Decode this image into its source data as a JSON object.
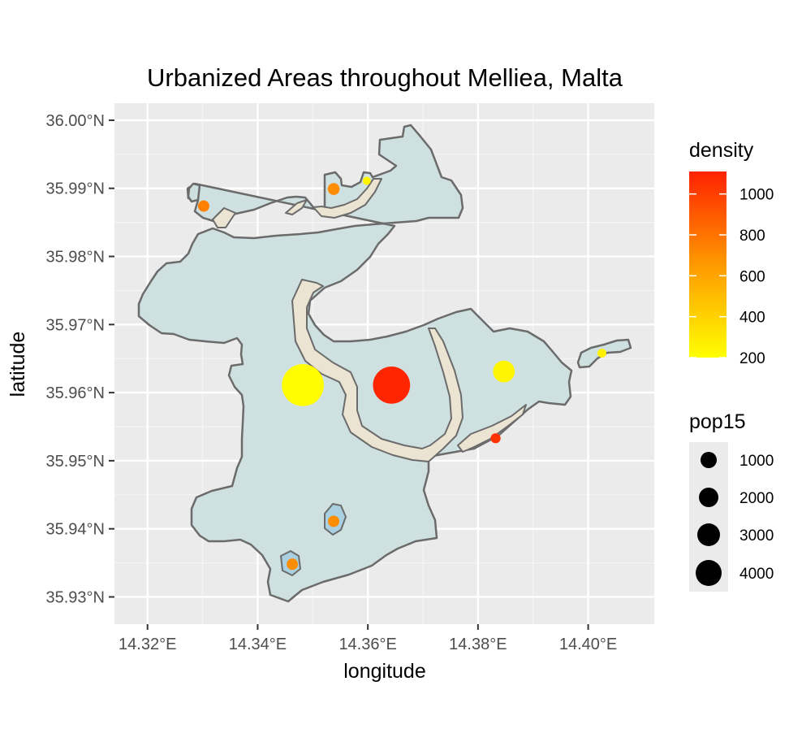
{
  "chart_data": {
    "type": "scatter",
    "subtype": "geographic-map",
    "title": "Urbanized Areas throughout Melliea, Malta",
    "xlabel": "longitude",
    "ylabel": "latitude",
    "xlim": [
      14.314,
      14.412
    ],
    "ylim": [
      35.926,
      36.0025
    ],
    "x_ticks": [
      {
        "value": 14.32,
        "label": "14.32°E"
      },
      {
        "value": 14.34,
        "label": "14.34°E"
      },
      {
        "value": 14.36,
        "label": "14.36°E"
      },
      {
        "value": 14.38,
        "label": "14.38°E"
      },
      {
        "value": 14.4,
        "label": "14.40°E"
      }
    ],
    "y_ticks": [
      {
        "value": 35.93,
        "label": "35.93°N"
      },
      {
        "value": 35.94,
        "label": "35.94°N"
      },
      {
        "value": 35.95,
        "label": "35.95°N"
      },
      {
        "value": 35.96,
        "label": "35.96°N"
      },
      {
        "value": 35.97,
        "label": "35.97°N"
      },
      {
        "value": 35.98,
        "label": "35.98°N"
      },
      {
        "value": 35.99,
        "label": "35.99°N"
      },
      {
        "value": 36.0,
        "label": "36.00°N"
      }
    ],
    "grid": true,
    "legend_placement": "right",
    "colors": {
      "panel_background": "#ebebeb",
      "grid": "#ffffff",
      "region_fill": "#cfe0e0",
      "region_stroke": "#6b6b6b",
      "urban_fill": "#ece4d2",
      "pocket_fill": "#a9cfe0",
      "density_low": "#ffff00",
      "density_mid": "#ff9900",
      "density_high": "#ff2200"
    },
    "points": [
      {
        "lon": 14.3302,
        "lat": 35.9874,
        "density": 750,
        "pop15": 300
      },
      {
        "lon": 14.3538,
        "lat": 35.9899,
        "density": 700,
        "pop15": 330
      },
      {
        "lon": 14.3598,
        "lat": 35.9911,
        "density": 250,
        "pop15": 120
      },
      {
        "lon": 14.3482,
        "lat": 35.9611,
        "density": 210,
        "pop15": 4100
      },
      {
        "lon": 14.3643,
        "lat": 35.9611,
        "density": 1100,
        "pop15": 3200
      },
      {
        "lon": 14.3847,
        "lat": 35.9631,
        "density": 250,
        "pop15": 1100
      },
      {
        "lon": 14.4025,
        "lat": 35.9658,
        "density": 260,
        "pop15": 180
      },
      {
        "lon": 14.3832,
        "lat": 35.9533,
        "density": 1050,
        "pop15": 230
      },
      {
        "lon": 14.3538,
        "lat": 35.9411,
        "density": 700,
        "pop15": 300
      },
      {
        "lon": 14.3463,
        "lat": 35.9348,
        "density": 700,
        "pop15": 300
      }
    ],
    "legends": {
      "color": {
        "title": "density",
        "min": 200,
        "max": 1110,
        "breaks": [
          200,
          400,
          600,
          800,
          1000
        ]
      },
      "size": {
        "title": "pop15",
        "breaks": [
          1000,
          2000,
          3000,
          4000
        ]
      }
    }
  }
}
